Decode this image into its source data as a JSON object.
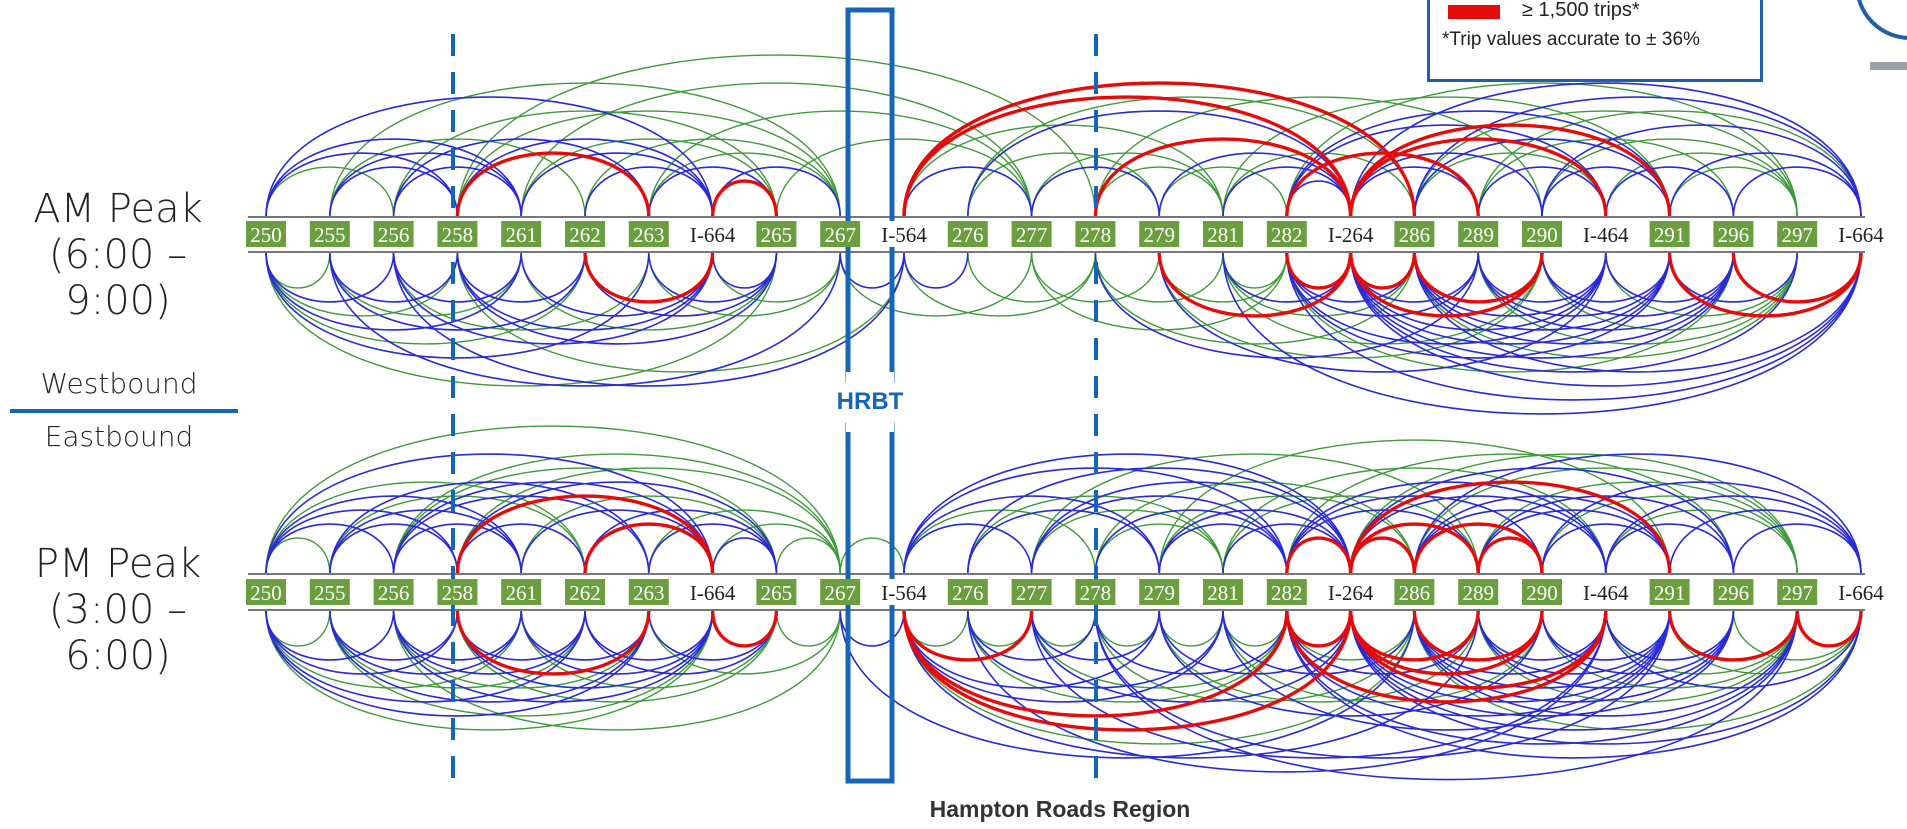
{
  "panels": {
    "am": {
      "title": "AM Peak",
      "time": "(6:00 – 9:00)"
    },
    "pm": {
      "title": "PM Peak",
      "time": "(3:00 – 6:00)"
    }
  },
  "direction": {
    "westbound": "Westbound",
    "eastbound": "Eastbound"
  },
  "hrbt_label": "HRBT",
  "region_label": "Hampton Roads Region",
  "legend": {
    "high_volume_label": "≥ 1,500 trips*",
    "accuracy_note": "*Trip values accurate to ± 36%"
  },
  "interchanges": [
    {
      "label": "250",
      "style": "green"
    },
    {
      "label": "255",
      "style": "green"
    },
    {
      "label": "256",
      "style": "green"
    },
    {
      "label": "258",
      "style": "green"
    },
    {
      "label": "261",
      "style": "green"
    },
    {
      "label": "262",
      "style": "green"
    },
    {
      "label": "263",
      "style": "green"
    },
    {
      "label": "I-664",
      "style": "plain"
    },
    {
      "label": "265",
      "style": "green"
    },
    {
      "label": "267",
      "style": "green"
    },
    {
      "label": "I-564",
      "style": "plain"
    },
    {
      "label": "276",
      "style": "green"
    },
    {
      "label": "277",
      "style": "green"
    },
    {
      "label": "278",
      "style": "green"
    },
    {
      "label": "279",
      "style": "green"
    },
    {
      "label": "281",
      "style": "green"
    },
    {
      "label": "282",
      "style": "green"
    },
    {
      "label": "I-264",
      "style": "plain"
    },
    {
      "label": "286",
      "style": "green"
    },
    {
      "label": "289",
      "style": "green"
    },
    {
      "label": "290",
      "style": "green"
    },
    {
      "label": "I-464",
      "style": "plain"
    },
    {
      "label": "291",
      "style": "green"
    },
    {
      "label": "296",
      "style": "green"
    },
    {
      "label": "297",
      "style": "green"
    },
    {
      "label": "I-664",
      "style": "plain"
    }
  ],
  "colors": {
    "low": "#2a2ad8",
    "mid": "#3f9a3a",
    "high": "#e50b0b",
    "badge_green": "#6a9e3f",
    "frame_blue": "#1565b8"
  },
  "flows": {
    "am_westbound": {
      "high": [
        [
          3,
          6
        ],
        [
          7,
          8
        ],
        [
          10,
          17
        ],
        [
          10,
          18
        ],
        [
          17,
          21
        ],
        [
          17,
          22
        ],
        [
          13,
          17
        ],
        [
          16,
          19
        ]
      ],
      "low": [
        [
          0,
          3
        ],
        [
          0,
          4
        ],
        [
          0,
          7
        ],
        [
          1,
          3
        ],
        [
          1,
          4
        ],
        [
          2,
          4
        ],
        [
          2,
          6
        ],
        [
          3,
          7
        ],
        [
          4,
          7
        ],
        [
          5,
          7
        ],
        [
          6,
          8
        ],
        [
          7,
          9
        ],
        [
          10,
          12
        ],
        [
          12,
          14
        ],
        [
          15,
          17
        ],
        [
          16,
          17
        ],
        [
          17,
          19
        ],
        [
          17,
          20
        ],
        [
          16,
          21
        ],
        [
          18,
          22
        ],
        [
          18,
          25
        ],
        [
          19,
          21
        ],
        [
          20,
          22
        ],
        [
          20,
          25
        ],
        [
          21,
          23
        ],
        [
          22,
          25
        ],
        [
          23,
          25
        ],
        [
          14,
          17
        ],
        [
          11,
          17
        ],
        [
          16,
          22
        ],
        [
          17,
          25
        ]
      ],
      "mid": [
        [
          0,
          2
        ],
        [
          1,
          5
        ],
        [
          2,
          8
        ],
        [
          3,
          9
        ],
        [
          4,
          8
        ],
        [
          5,
          9
        ],
        [
          6,
          9
        ],
        [
          1,
          9
        ],
        [
          4,
          12
        ],
        [
          6,
          12
        ],
        [
          11,
          14
        ],
        [
          12,
          15
        ],
        [
          13,
          15
        ],
        [
          14,
          16
        ],
        [
          15,
          18
        ],
        [
          18,
          21
        ],
        [
          19,
          23
        ],
        [
          20,
          24
        ],
        [
          21,
          24
        ],
        [
          22,
          24
        ],
        [
          10,
          15
        ],
        [
          11,
          18
        ],
        [
          13,
          20
        ],
        [
          16,
          24
        ],
        [
          18,
          24
        ],
        [
          19,
          25
        ],
        [
          3,
          13
        ],
        [
          8,
          12
        ],
        [
          15,
          22
        ]
      ]
    },
    "am_eastbound": {
      "high": [
        [
          5,
          7
        ],
        [
          14,
          17
        ],
        [
          16,
          17
        ],
        [
          17,
          18
        ],
        [
          17,
          20
        ],
        [
          18,
          20
        ],
        [
          22,
          25
        ],
        [
          23,
          25
        ]
      ],
      "low": [
        [
          0,
          2
        ],
        [
          0,
          4
        ],
        [
          0,
          6
        ],
        [
          1,
          3
        ],
        [
          1,
          5
        ],
        [
          2,
          4
        ],
        [
          2,
          7
        ],
        [
          3,
          5
        ],
        [
          3,
          7
        ],
        [
          3,
          8
        ],
        [
          4,
          7
        ],
        [
          5,
          8
        ],
        [
          6,
          8
        ],
        [
          7,
          8
        ],
        [
          9,
          10
        ],
        [
          16,
          18
        ],
        [
          16,
          19
        ],
        [
          16,
          21
        ],
        [
          16,
          22
        ],
        [
          17,
          19
        ],
        [
          17,
          21
        ],
        [
          17,
          22
        ],
        [
          17,
          23
        ],
        [
          17,
          24
        ],
        [
          17,
          25
        ],
        [
          18,
          21
        ],
        [
          18,
          22
        ],
        [
          18,
          23
        ],
        [
          18,
          25
        ],
        [
          19,
          21
        ],
        [
          19,
          22
        ],
        [
          19,
          23
        ],
        [
          20,
          22
        ],
        [
          20,
          23
        ],
        [
          21,
          23
        ],
        [
          22,
          24
        ],
        [
          15,
          25
        ],
        [
          16,
          25
        ],
        [
          14,
          21
        ],
        [
          13,
          19
        ],
        [
          1,
          9
        ],
        [
          2,
          10
        ],
        [
          10,
          11
        ],
        [
          15,
          17
        ]
      ],
      "mid": [
        [
          0,
          1
        ],
        [
          0,
          3
        ],
        [
          0,
          5
        ],
        [
          1,
          4
        ],
        [
          2,
          6
        ],
        [
          4,
          8
        ],
        [
          6,
          9
        ],
        [
          7,
          9
        ],
        [
          9,
          12
        ],
        [
          10,
          13
        ],
        [
          11,
          13
        ],
        [
          12,
          14
        ],
        [
          13,
          15
        ],
        [
          14,
          16
        ],
        [
          15,
          16
        ],
        [
          15,
          18
        ],
        [
          15,
          20
        ],
        [
          16,
          23
        ],
        [
          18,
          24
        ],
        [
          19,
          24
        ],
        [
          20,
          24
        ],
        [
          21,
          24
        ],
        [
          14,
          20
        ],
        [
          13,
          18
        ],
        [
          0,
          8
        ],
        [
          3,
          10
        ],
        [
          12,
          16
        ]
      ]
    },
    "pm_westbound": {
      "high": [
        [
          3,
          7
        ],
        [
          5,
          7
        ],
        [
          16,
          17
        ],
        [
          17,
          18
        ],
        [
          17,
          19
        ],
        [
          18,
          20
        ],
        [
          19,
          20
        ],
        [
          17,
          22
        ]
      ],
      "low": [
        [
          0,
          2
        ],
        [
          0,
          3
        ],
        [
          0,
          4
        ],
        [
          0,
          7
        ],
        [
          1,
          3
        ],
        [
          1,
          4
        ],
        [
          1,
          6
        ],
        [
          2,
          4
        ],
        [
          2,
          6
        ],
        [
          2,
          7
        ],
        [
          3,
          5
        ],
        [
          3,
          8
        ],
        [
          4,
          7
        ],
        [
          5,
          8
        ],
        [
          6,
          8
        ],
        [
          7,
          8
        ],
        [
          10,
          12
        ],
        [
          10,
          14
        ],
        [
          10,
          16
        ],
        [
          11,
          14
        ],
        [
          12,
          16
        ],
        [
          13,
          16
        ],
        [
          14,
          16
        ],
        [
          15,
          17
        ],
        [
          16,
          19
        ],
        [
          16,
          20
        ],
        [
          16,
          21
        ],
        [
          17,
          21
        ],
        [
          17,
          23
        ],
        [
          18,
          21
        ],
        [
          18,
          22
        ],
        [
          18,
          25
        ],
        [
          19,
          22
        ],
        [
          19,
          23
        ],
        [
          20,
          22
        ],
        [
          20,
          25
        ],
        [
          21,
          23
        ],
        [
          21,
          25
        ],
        [
          22,
          25
        ],
        [
          23,
          25
        ],
        [
          10,
          17
        ],
        [
          11,
          17
        ],
        [
          12,
          17
        ],
        [
          14,
          17
        ]
      ],
      "mid": [
        [
          0,
          1
        ],
        [
          0,
          5
        ],
        [
          1,
          5
        ],
        [
          2,
          8
        ],
        [
          3,
          9
        ],
        [
          4,
          8
        ],
        [
          6,
          9
        ],
        [
          7,
          9
        ],
        [
          8,
          9
        ],
        [
          9,
          10
        ],
        [
          10,
          13
        ],
        [
          11,
          15
        ],
        [
          12,
          15
        ],
        [
          13,
          15
        ],
        [
          13,
          18
        ],
        [
          14,
          18
        ],
        [
          15,
          19
        ],
        [
          15,
          21
        ],
        [
          16,
          23
        ],
        [
          17,
          24
        ],
        [
          18,
          24
        ],
        [
          19,
          24
        ],
        [
          20,
          24
        ],
        [
          21,
          24
        ],
        [
          0,
          9
        ],
        [
          2,
          9
        ],
        [
          12,
          19
        ],
        [
          14,
          22
        ]
      ]
    },
    "pm_eastbound": {
      "high": [
        [
          3,
          6
        ],
        [
          7,
          8
        ],
        [
          10,
          12
        ],
        [
          10,
          16
        ],
        [
          10,
          17
        ],
        [
          16,
          17
        ],
        [
          17,
          19
        ],
        [
          17,
          20
        ],
        [
          17,
          21
        ],
        [
          18,
          20
        ],
        [
          22,
          24
        ],
        [
          24,
          25
        ],
        [
          16,
          21
        ]
      ],
      "low": [
        [
          0,
          2
        ],
        [
          0,
          3
        ],
        [
          0,
          5
        ],
        [
          0,
          6
        ],
        [
          1,
          3
        ],
        [
          1,
          4
        ],
        [
          1,
          6
        ],
        [
          2,
          4
        ],
        [
          2,
          5
        ],
        [
          2,
          7
        ],
        [
          3,
          5
        ],
        [
          3,
          7
        ],
        [
          4,
          6
        ],
        [
          4,
          7
        ],
        [
          5,
          7
        ],
        [
          5,
          8
        ],
        [
          6,
          8
        ],
        [
          9,
          10
        ],
        [
          10,
          14
        ],
        [
          10,
          15
        ],
        [
          11,
          13
        ],
        [
          11,
          15
        ],
        [
          12,
          14
        ],
        [
          12,
          17
        ],
        [
          13,
          16
        ],
        [
          14,
          17
        ],
        [
          15,
          18
        ],
        [
          16,
          19
        ],
        [
          16,
          22
        ],
        [
          17,
          22
        ],
        [
          17,
          23
        ],
        [
          17,
          24
        ],
        [
          17,
          25
        ],
        [
          18,
          21
        ],
        [
          18,
          22
        ],
        [
          18,
          23
        ],
        [
          18,
          24
        ],
        [
          19,
          21
        ],
        [
          19,
          22
        ],
        [
          19,
          23
        ],
        [
          20,
          22
        ],
        [
          20,
          23
        ],
        [
          21,
          23
        ],
        [
          21,
          25
        ],
        [
          16,
          24
        ],
        [
          16,
          25
        ],
        [
          14,
          20
        ],
        [
          15,
          22
        ],
        [
          10,
          19
        ],
        [
          11,
          21
        ],
        [
          12,
          21
        ],
        [
          13,
          22
        ],
        [
          9,
          18
        ],
        [
          13,
          24
        ]
      ],
      "mid": [
        [
          0,
          1
        ],
        [
          0,
          4
        ],
        [
          1,
          5
        ],
        [
          2,
          6
        ],
        [
          3,
          8
        ],
        [
          4,
          8
        ],
        [
          6,
          9
        ],
        [
          8,
          9
        ],
        [
          10,
          11
        ],
        [
          11,
          12
        ],
        [
          12,
          13
        ],
        [
          13,
          14
        ],
        [
          14,
          15
        ],
        [
          15,
          16
        ],
        [
          16,
          18
        ],
        [
          18,
          25
        ],
        [
          19,
          24
        ],
        [
          20,
          24
        ],
        [
          21,
          24
        ],
        [
          22,
          25
        ],
        [
          23,
          25
        ],
        [
          12,
          16
        ],
        [
          13,
          18
        ],
        [
          14,
          19
        ],
        [
          15,
          20
        ],
        [
          11,
          16
        ],
        [
          10,
          18
        ],
        [
          0,
          7
        ],
        [
          1,
          7
        ],
        [
          2,
          9
        ]
      ]
    }
  }
}
